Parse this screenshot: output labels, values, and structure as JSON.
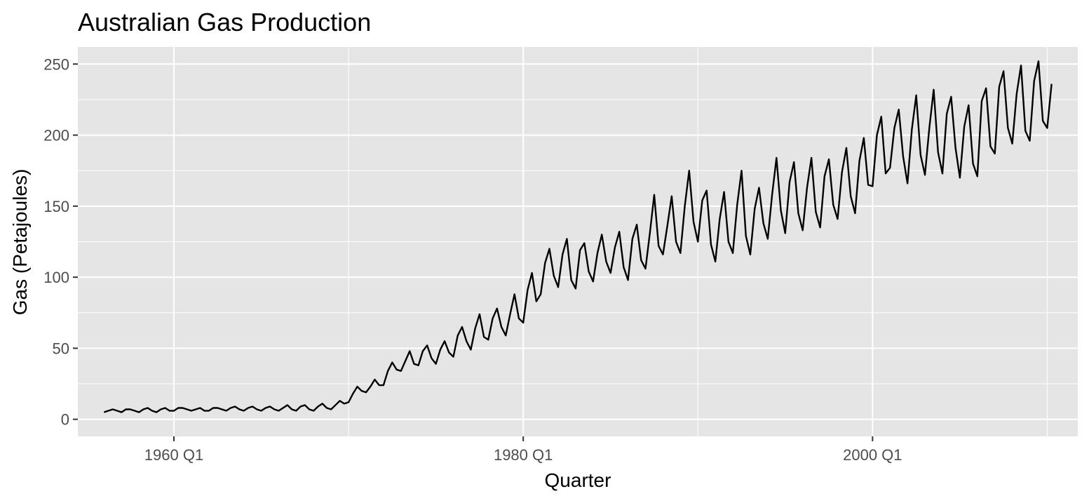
{
  "chart_data": {
    "type": "line",
    "title": "Australian Gas Production",
    "xlabel": "Quarter",
    "ylabel": "Gas (Petajoules)",
    "x_start": "1956 Q1",
    "x_end": "2010 Q2",
    "xlim": [
      "1954 Q3",
      "2011 Q4"
    ],
    "ylim": [
      -12,
      262
    ],
    "x_ticks": [
      {
        "quarter": "1960 Q1",
        "label": "1960 Q1"
      },
      {
        "quarter": "1980 Q1",
        "label": "1980 Q1"
      },
      {
        "quarter": "2000 Q1",
        "label": "2000 Q1"
      }
    ],
    "x_minor_ticks": [
      "1970 Q1",
      "1990 Q1",
      "2010 Q1"
    ],
    "y_ticks": [
      0,
      50,
      100,
      150,
      200,
      250
    ],
    "y_tick_labels": [
      "0",
      "50",
      "100",
      "150",
      "200",
      "250"
    ],
    "y_minor_ticks": [
      25,
      75,
      125,
      175,
      225
    ],
    "grid": true,
    "colors": {
      "panel": "#e5e5e5",
      "grid": "#ffffff",
      "line": "#000000"
    },
    "series": [
      {
        "values": [
          5,
          6,
          7,
          6,
          5,
          7,
          7,
          6,
          5,
          7,
          8,
          6,
          5,
          7,
          8,
          6,
          6,
          8,
          8,
          7,
          6,
          7,
          8,
          6,
          6,
          8,
          8,
          7,
          6,
          8,
          9,
          7,
          6,
          8,
          9,
          7,
          6,
          8,
          9,
          7,
          6,
          8,
          10,
          7,
          6,
          9,
          10,
          7,
          6,
          9,
          11,
          8,
          7,
          10,
          13,
          11,
          12,
          18,
          23,
          20,
          19,
          23,
          28,
          24,
          24,
          34,
          40,
          35,
          34,
          41,
          48,
          39,
          38,
          48,
          52,
          43,
          39,
          49,
          55,
          47,
          44,
          59,
          65,
          55,
          49,
          64,
          74,
          58,
          56,
          71,
          78,
          65,
          59,
          74,
          88,
          71,
          68,
          91,
          103,
          83,
          88,
          110,
          120,
          101,
          93,
          116,
          127,
          98,
          92,
          119,
          124,
          104,
          97,
          117,
          130,
          111,
          103,
          121,
          132,
          107,
          98,
          127,
          137,
          112,
          106,
          131,
          158,
          122,
          116,
          136,
          157,
          125,
          117,
          150,
          175,
          139,
          125,
          154,
          161,
          123,
          111,
          141,
          160,
          125,
          117,
          151,
          175,
          129,
          116,
          148,
          163,
          138,
          127,
          158,
          184,
          147,
          131,
          167,
          181,
          145,
          133,
          163,
          184,
          146,
          135,
          171,
          183,
          151,
          141,
          174,
          191,
          157,
          145,
          182,
          198,
          165,
          164,
          200,
          213,
          173,
          177,
          205,
          218,
          185,
          166,
          204,
          228,
          186,
          172,
          205,
          232,
          188,
          173,
          215,
          227,
          191,
          170,
          206,
          221,
          180,
          171,
          224,
          233,
          192,
          187,
          234,
          245,
          205,
          194,
          229,
          249,
          203,
          196,
          238,
          252,
          210,
          205,
          236
        ]
      }
    ]
  }
}
